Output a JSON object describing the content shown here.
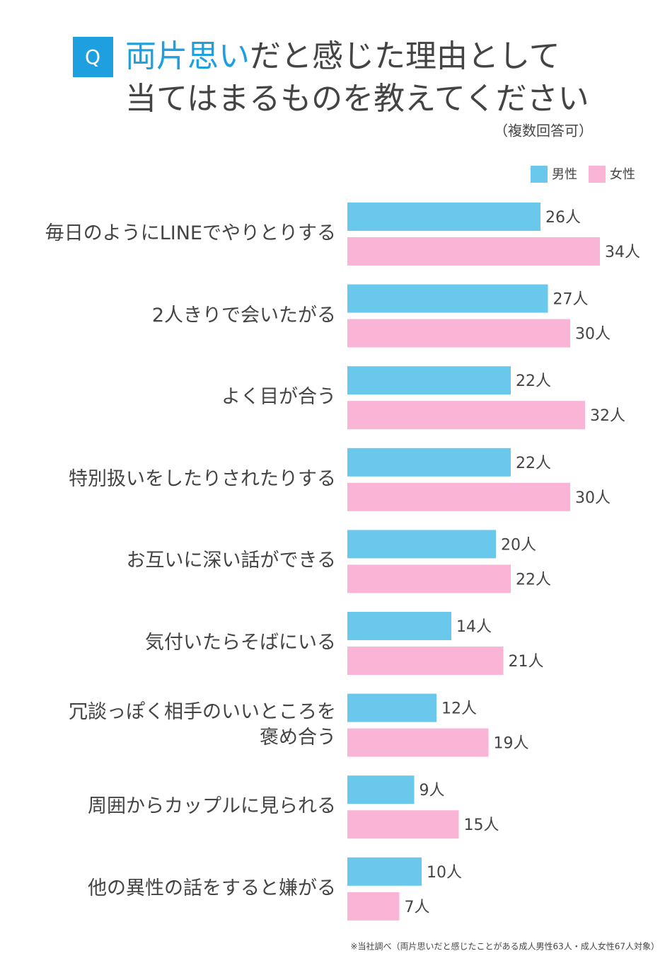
{
  "chart_data": {
    "type": "hbar-grouped",
    "badge": "Q",
    "title": [
      "両片思い",
      "だと感じた理由として",
      "当てはまるものを教えてください"
    ],
    "subtitle": "（複数回答可）",
    "categories": [
      "毎日のようにLINEでやりとりする",
      "2人きりで会いたがる",
      "よく目が合う",
      "特別扱いをしたりされたりする",
      "お互いに深い話ができる",
      "気付いたらそばにいる",
      "冗談っぽく相手のいいところを\n褒め合う",
      "周囲からカップルに見られる",
      "他の異性の話をすると嫌がる"
    ],
    "series": [
      {
        "name": "男性",
        "color": "#6ac8ec",
        "values": [
          26,
          27,
          22,
          22,
          20,
          14,
          12,
          9,
          10
        ],
        "value_labels": [
          "26人",
          "27人",
          "22人",
          "22人",
          "20人",
          "14人",
          "12人",
          "9人",
          "10人"
        ]
      },
      {
        "name": "女性",
        "color": "#f9b4d6",
        "values": [
          34,
          30,
          32,
          30,
          22,
          21,
          19,
          15,
          7
        ],
        "value_labels": [
          "34人",
          "30人",
          "32人",
          "30人",
          "22人",
          "21人",
          "19人",
          "15人",
          "7人"
        ]
      }
    ],
    "note": "※当社調べ（両片思いだと感じたことがある成人男性63人・成人女性67人対象）"
  }
}
